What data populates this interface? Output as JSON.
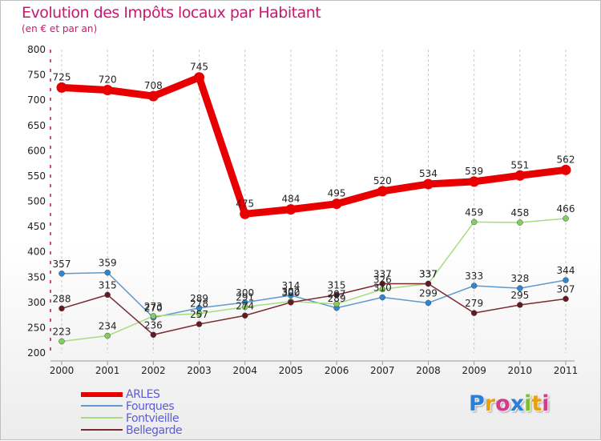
{
  "header": {
    "title": "Evolution des Impôts locaux par Habitant",
    "subtitle": "(en € et par an)"
  },
  "logo": {
    "letters": [
      "P",
      "r",
      "o",
      "x",
      "i",
      "t",
      "i"
    ],
    "colors": [
      "#2b7fd4",
      "#e8a010",
      "#d23c8a",
      "#2b7fd4",
      "#7bbf2a",
      "#e8a010",
      "#d23c8a"
    ]
  },
  "chart_data": {
    "type": "line",
    "title": "Evolution des Impôts locaux par Habitant",
    "subtitle": "(en € et par an)",
    "xlabel": "",
    "ylabel": "",
    "ylim": [
      200,
      800
    ],
    "yticks": [
      200,
      250,
      300,
      350,
      400,
      450,
      500,
      550,
      600,
      650,
      700,
      750,
      800
    ],
    "grid": "vertical-dashed",
    "x": [
      "2000",
      "2001",
      "2002",
      "2003",
      "2004",
      "2005",
      "2006",
      "2007",
      "2008",
      "2009",
      "2010",
      "2011"
    ],
    "series": [
      {
        "name": "ARLES",
        "color": "#e80000",
        "emphasis": true,
        "values": [
          725,
          720,
          708,
          745,
          475,
          484,
          495,
          520,
          534,
          539,
          551,
          562
        ],
        "labels": [
          "725",
          "720",
          "708",
          "745",
          "475",
          "484",
          "495",
          "520",
          "534",
          "539",
          "551",
          "562"
        ]
      },
      {
        "name": "Fourques",
        "color": "#5f99cf",
        "marker": "#2f86d0",
        "values": [
          357,
          359,
          270,
          289,
          300,
          314,
          289,
          310,
          299,
          333,
          328,
          344
        ],
        "labels": [
          "357",
          "359",
          "270",
          "289",
          "300",
          "314",
          "289",
          "310",
          "299",
          "333",
          "328",
          "344"
        ]
      },
      {
        "name": "Fontvieille",
        "color": "#a6dc7e",
        "marker": "#84cf5c",
        "values": [
          223,
          234,
          273,
          278,
          291,
          302,
          297,
          326,
          337,
          459,
          458,
          466
        ],
        "labels": [
          "223",
          "234",
          "273",
          "278",
          "291",
          "302",
          "297",
          "326",
          "337",
          "459",
          "458",
          "466"
        ]
      },
      {
        "name": "Bellegarde",
        "color": "#7a2a30",
        "marker": "#641a22",
        "values": [
          288,
          315,
          236,
          257,
          274,
          300,
          315,
          337,
          337,
          279,
          295,
          307
        ],
        "labels": [
          "288",
          "315",
          "236",
          "257",
          "274",
          "300",
          "315",
          "337",
          "337",
          "279",
          "295",
          "307"
        ]
      }
    ],
    "legend": "bottom-left"
  }
}
